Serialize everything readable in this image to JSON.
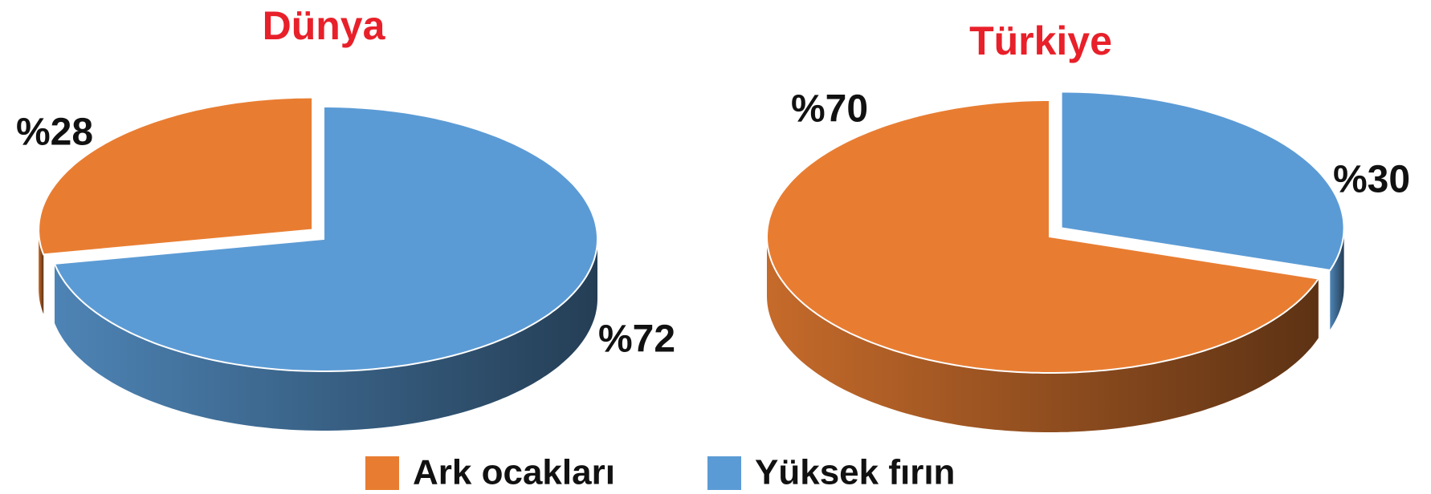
{
  "chart_data": [
    {
      "type": "pie",
      "title": "Dünya",
      "categories": [
        "Ark ocakları",
        "Yüksek fırın"
      ],
      "values": [
        28,
        72
      ],
      "value_labels": [
        "%28",
        "%72"
      ],
      "colors": [
        "#e87d32",
        "#5b9bd5"
      ]
    },
    {
      "type": "pie",
      "title": "Türkiye",
      "categories": [
        "Ark ocakları",
        "Yüksek fırın"
      ],
      "values": [
        70,
        30
      ],
      "value_labels": [
        "%70",
        "%30"
      ],
      "colors": [
        "#e87d32",
        "#5b9bd5"
      ]
    }
  ]
}
